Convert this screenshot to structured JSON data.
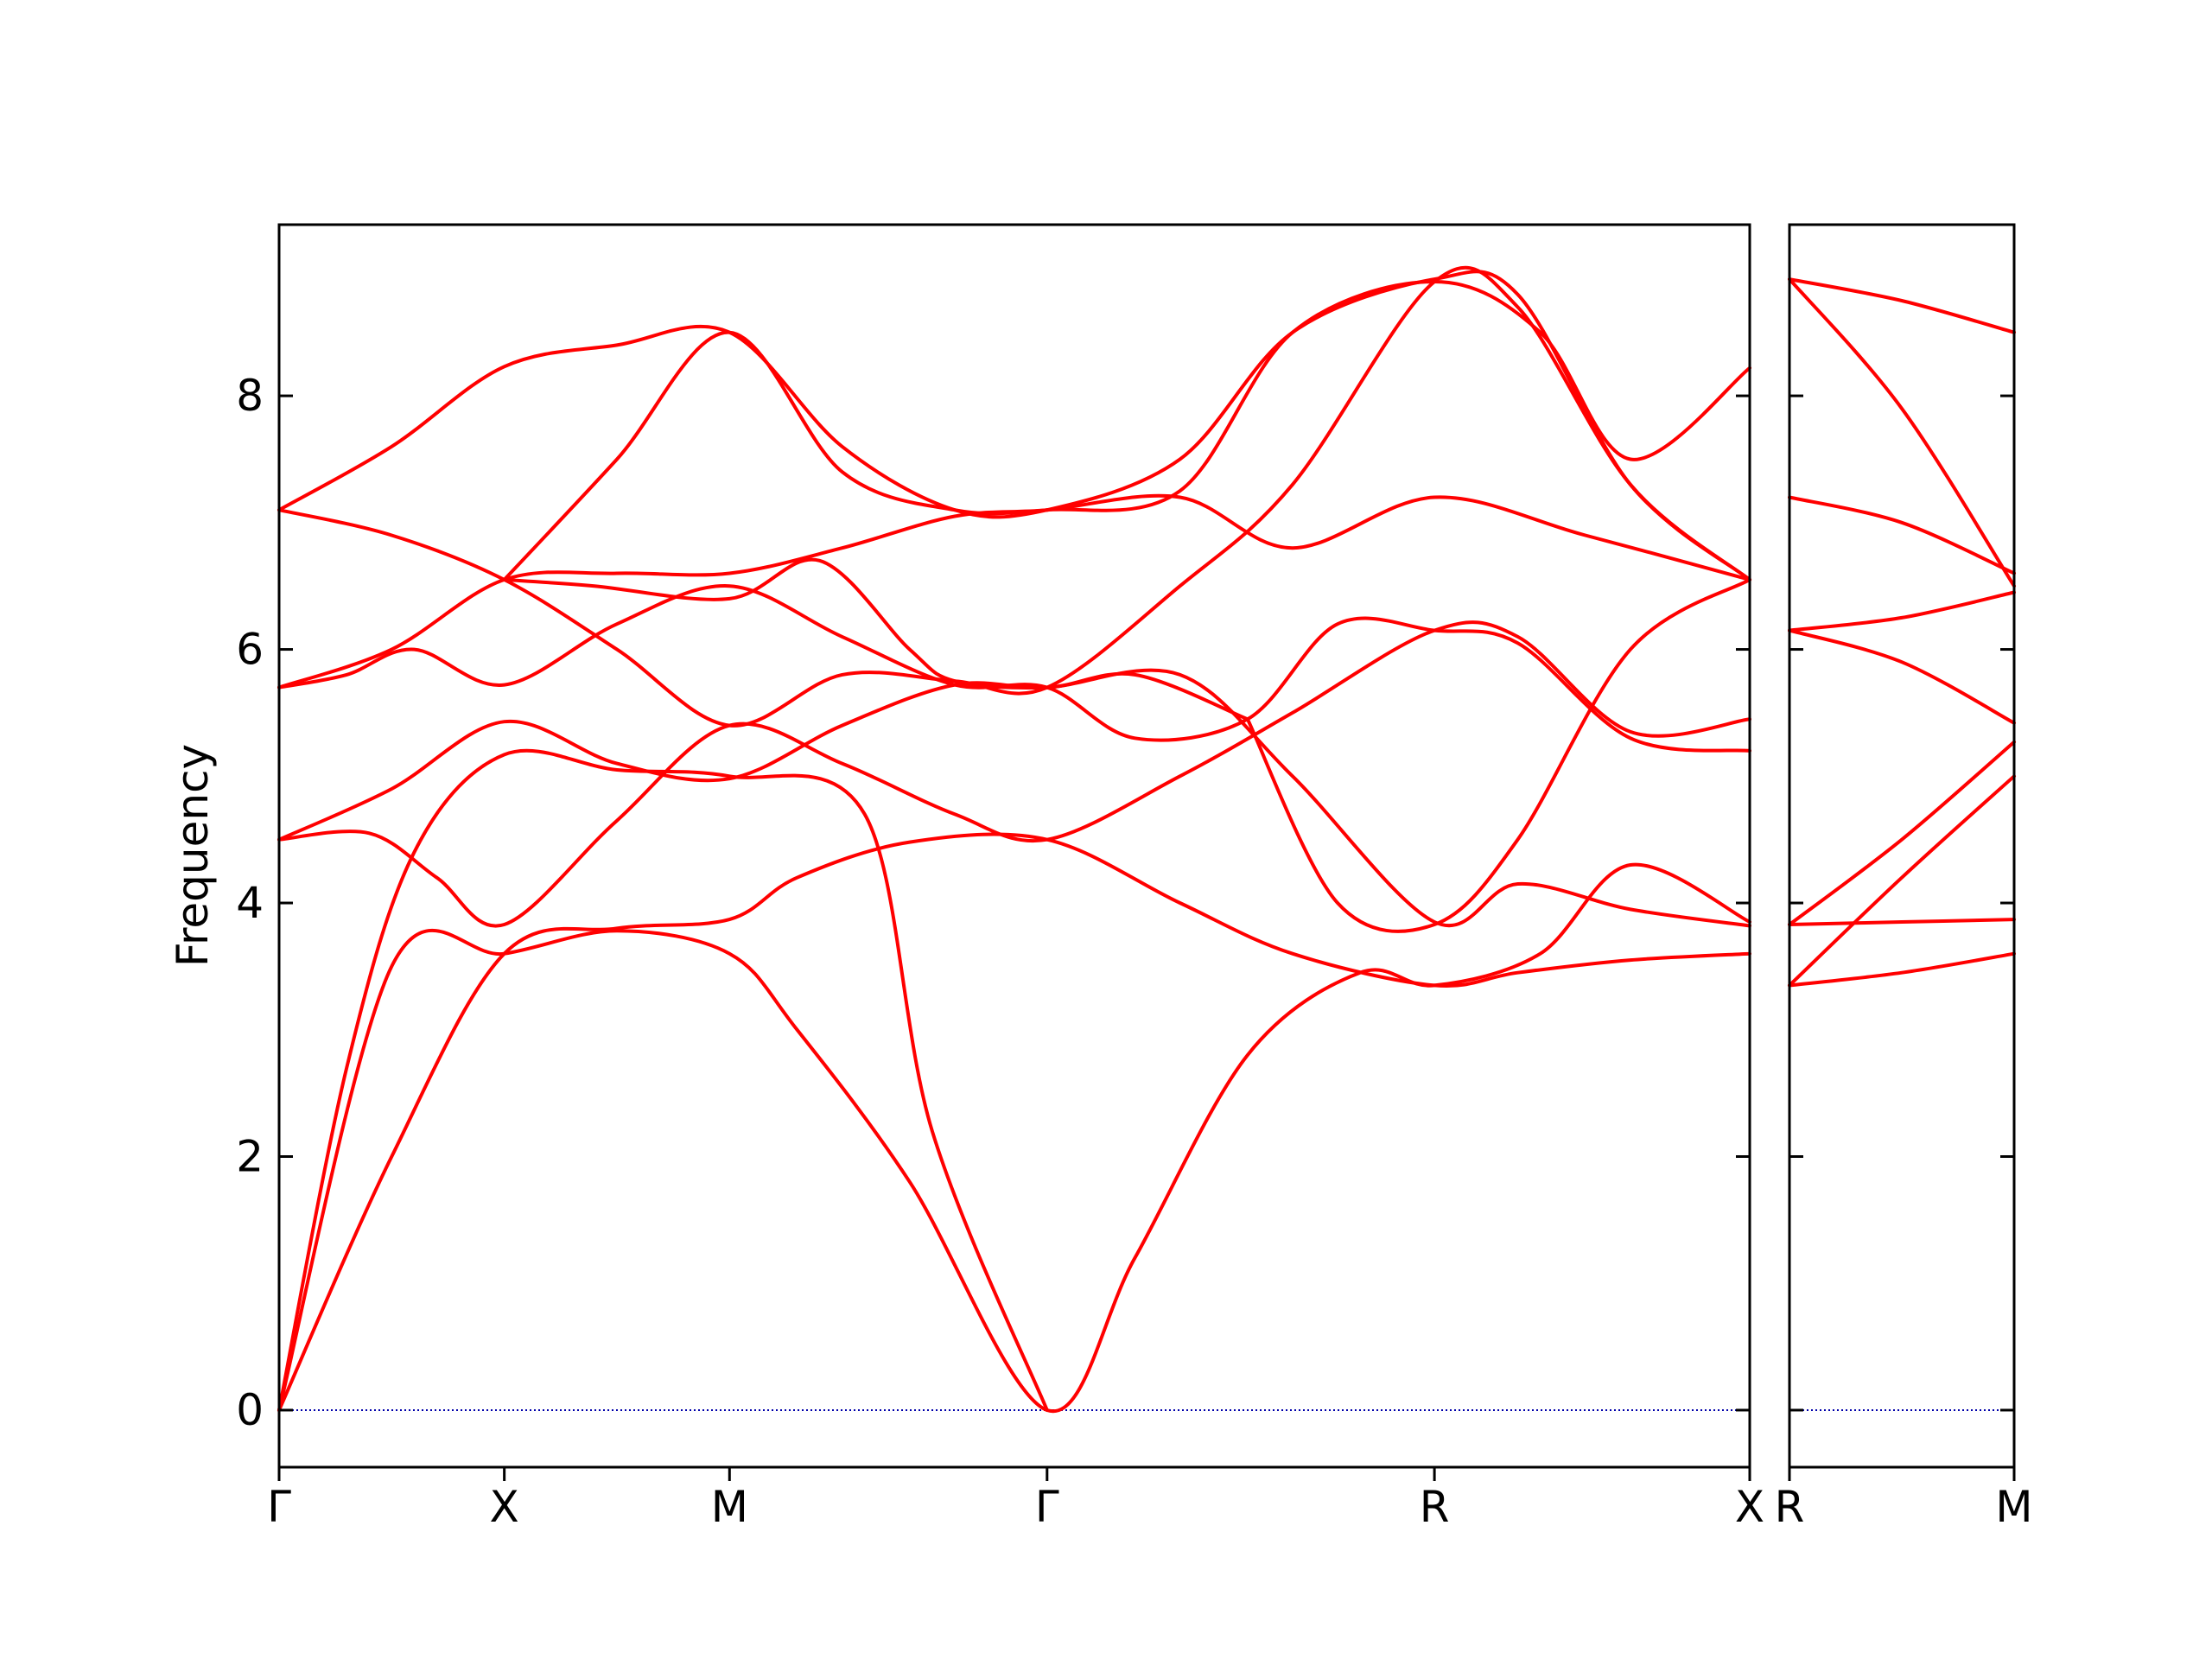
{
  "chart_data": {
    "type": "line",
    "ylabel": "Frequency",
    "ylim": [
      -0.45,
      9.35
    ],
    "yticks": [
      0,
      2,
      4,
      6,
      8
    ],
    "line_color": "#ff0000",
    "zero_line_color": "#0000aa",
    "panels": [
      {
        "xlim": [
          0,
          6.53
        ],
        "ticks": [
          {
            "x": 0,
            "label": "Γ"
          },
          {
            "x": 1.0,
            "label": "X"
          },
          {
            "x": 2.0,
            "label": "M"
          },
          {
            "x": 3.41,
            "label": "Γ"
          },
          {
            "x": 5.13,
            "label": "R"
          },
          {
            "x": 6.53,
            "label": "X"
          }
        ],
        "bands": [
          [
            [
              0,
              0
            ],
            [
              0.5,
              2.0
            ],
            [
              1.0,
              3.6
            ],
            [
              1.5,
              3.8
            ],
            [
              2.0,
              3.87
            ],
            [
              2.3,
              4.2
            ],
            [
              2.8,
              4.48
            ],
            [
              3.41,
              4.5
            ],
            [
              4.0,
              4.0
            ],
            [
              4.5,
              3.6
            ],
            [
              5.13,
              3.35
            ],
            [
              5.5,
              3.45
            ],
            [
              6.0,
              3.55
            ],
            [
              6.53,
              3.6
            ]
          ],
          [
            [
              0,
              0
            ],
            [
              0.3,
              2.7
            ],
            [
              0.6,
              4.4
            ],
            [
              1.0,
              5.17
            ],
            [
              1.5,
              5.05
            ],
            [
              2.0,
              5.0
            ],
            [
              2.6,
              4.7
            ],
            [
              2.9,
              2.2
            ],
            [
              3.41,
              0
            ]
          ],
          [
            [
              0,
              4.5
            ],
            [
              0.4,
              4.55
            ],
            [
              0.7,
              4.2
            ],
            [
              1.0,
              3.83
            ],
            [
              1.5,
              4.65
            ],
            [
              2.0,
              5.4
            ],
            [
              2.5,
              5.1
            ],
            [
              3.0,
              4.7
            ],
            [
              3.41,
              4.5
            ],
            [
              4.0,
              5.0
            ],
            [
              4.5,
              5.5
            ],
            [
              5.13,
              6.15
            ],
            [
              5.5,
              6.1
            ],
            [
              6.0,
              5.35
            ],
            [
              6.53,
              5.45
            ]
          ],
          [
            [
              0,
              4.5
            ],
            [
              0.5,
              4.9
            ],
            [
              1.0,
              5.43
            ],
            [
              1.5,
              5.1
            ],
            [
              2.0,
              4.98
            ],
            [
              2.5,
              5.4
            ],
            [
              3.0,
              5.72
            ],
            [
              3.41,
              5.7
            ],
            [
              4.0,
              5.8
            ],
            [
              4.5,
              5.0
            ],
            [
              5.13,
              3.85
            ],
            [
              5.5,
              4.15
            ],
            [
              6.0,
              3.95
            ],
            [
              6.53,
              3.82
            ]
          ],
          [
            [
              0,
              5.7
            ],
            [
              0.3,
              5.8
            ],
            [
              0.6,
              6.0
            ],
            [
              1.0,
              5.72
            ],
            [
              1.5,
              6.2
            ],
            [
              2.0,
              6.5
            ],
            [
              2.5,
              6.1
            ],
            [
              3.0,
              5.72
            ],
            [
              3.41,
              5.7
            ],
            [
              3.8,
              5.3
            ],
            [
              4.3,
              5.45
            ],
            [
              4.7,
              6.2
            ],
            [
              5.13,
              6.15
            ],
            [
              5.5,
              6.05
            ],
            [
              6.0,
              5.3
            ],
            [
              6.53,
              5.2
            ]
          ],
          [
            [
              0,
              5.7
            ],
            [
              0.5,
              6.0
            ],
            [
              1.0,
              6.55
            ],
            [
              1.5,
              6.6
            ],
            [
              2.0,
              6.6
            ],
            [
              2.5,
              6.8
            ],
            [
              3.0,
              7.05
            ],
            [
              3.41,
              7.1
            ],
            [
              4.0,
              7.2
            ],
            [
              4.5,
              6.8
            ],
            [
              5.13,
              7.2
            ],
            [
              5.8,
              6.9
            ],
            [
              6.53,
              6.55
            ]
          ],
          [
            [
              0,
              7.1
            ],
            [
              0.5,
              6.9
            ],
            [
              1.0,
              6.55
            ],
            [
              1.5,
              6.0
            ],
            [
              2.0,
              5.4
            ],
            [
              2.5,
              5.8
            ],
            [
              3.0,
              5.75
            ],
            [
              3.41,
              5.7
            ],
            [
              4.0,
              6.5
            ],
            [
              4.5,
              7.3
            ],
            [
              5.13,
              8.9
            ],
            [
              5.5,
              8.7
            ],
            [
              6.0,
              7.3
            ],
            [
              6.53,
              6.55
            ]
          ],
          [
            [
              0,
              7.1
            ],
            [
              0.5,
              7.6
            ],
            [
              1.0,
              8.23
            ],
            [
              1.5,
              8.4
            ],
            [
              2.0,
              8.5
            ],
            [
              2.5,
              7.6
            ],
            [
              3.0,
              7.1
            ],
            [
              3.41,
              7.1
            ],
            [
              4.0,
              7.5
            ],
            [
              4.5,
              8.5
            ],
            [
              5.13,
              8.92
            ],
            [
              5.5,
              8.8
            ],
            [
              6.0,
              7.3
            ],
            [
              6.53,
              6.55
            ]
          ],
          [
            [
              0,
              0
            ],
            [
              0.5,
              3.5
            ],
            [
              1.0,
              3.6
            ],
            [
              1.5,
              3.78
            ],
            [
              2.0,
              3.6
            ],
            [
              2.3,
              3.0
            ],
            [
              2.8,
              1.8
            ],
            [
              3.41,
              0
            ],
            [
              3.8,
              1.2
            ],
            [
              4.3,
              2.8
            ],
            [
              4.8,
              3.45
            ],
            [
              5.13,
              3.35
            ],
            [
              5.6,
              3.6
            ],
            [
              6.0,
              4.3
            ],
            [
              6.53,
              3.85
            ]
          ],
          [
            [
              1.0,
              6.55
            ],
            [
              1.4,
              6.5
            ],
            [
              2.0,
              6.4
            ],
            [
              2.4,
              6.7
            ],
            [
              2.8,
              6.0
            ],
            [
              3.0,
              5.75
            ],
            [
              3.41,
              5.7
            ],
            [
              3.8,
              5.8
            ],
            [
              4.3,
              5.45
            ]
          ],
          [
            [
              1.0,
              6.55
            ],
            [
              1.5,
              7.5
            ],
            [
              2.0,
              8.5
            ],
            [
              2.5,
              7.4
            ],
            [
              3.0,
              7.1
            ],
            [
              3.41,
              7.1
            ],
            [
              4.0,
              7.25
            ],
            [
              4.5,
              8.5
            ],
            [
              5.13,
              8.9
            ],
            [
              5.6,
              8.5
            ],
            [
              6.0,
              7.5
            ],
            [
              6.53,
              8.22
            ]
          ],
          [
            [
              4.3,
              5.45
            ],
            [
              4.7,
              4.0
            ],
            [
              5.13,
              3.83
            ],
            [
              5.5,
              4.5
            ],
            [
              6.0,
              6.0
            ],
            [
              6.53,
              6.55
            ]
          ]
        ]
      },
      {
        "xlim": [
          0,
          1.0
        ],
        "ticks": [
          {
            "x": 0,
            "label": "R"
          },
          {
            "x": 1.0,
            "label": "M"
          }
        ],
        "bands": [
          [
            [
              0,
              3.35
            ],
            [
              0.5,
              3.45
            ],
            [
              1.0,
              3.6
            ]
          ],
          [
            [
              0,
              3.35
            ],
            [
              0.5,
              4.2
            ],
            [
              1.0,
              5.0
            ]
          ],
          [
            [
              0,
              3.83
            ],
            [
              0.5,
              3.85
            ],
            [
              1.0,
              3.87
            ]
          ],
          [
            [
              0,
              3.83
            ],
            [
              0.5,
              4.5
            ],
            [
              1.0,
              5.27
            ]
          ],
          [
            [
              0,
              6.15
            ],
            [
              0.5,
              5.9
            ],
            [
              1.0,
              5.42
            ]
          ],
          [
            [
              0,
              6.15
            ],
            [
              0.5,
              6.25
            ],
            [
              1.0,
              6.45
            ]
          ],
          [
            [
              0,
              7.2
            ],
            [
              0.5,
              7.0
            ],
            [
              1.0,
              6.6
            ]
          ],
          [
            [
              0,
              8.92
            ],
            [
              0.5,
              7.9
            ],
            [
              1.0,
              6.5
            ]
          ],
          [
            [
              0,
              8.92
            ],
            [
              0.5,
              8.75
            ],
            [
              1.0,
              8.5
            ]
          ]
        ]
      }
    ]
  }
}
